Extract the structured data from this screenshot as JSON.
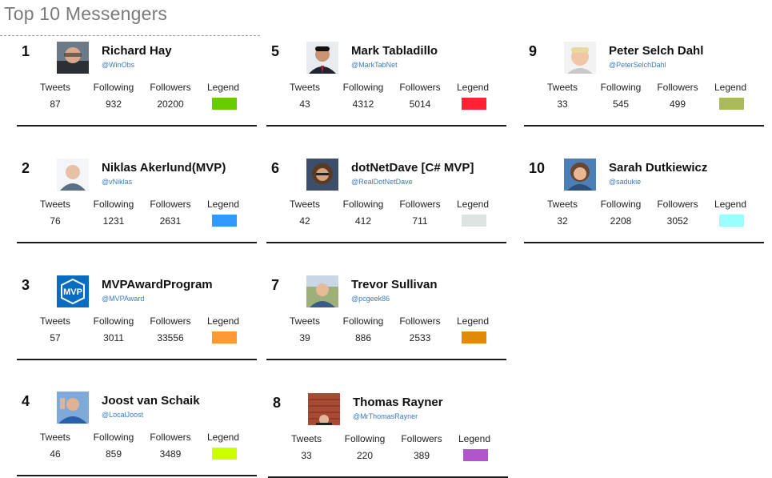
{
  "page": {
    "title": "Top 10 Messengers"
  },
  "labels": {
    "tweets": "Tweets",
    "following": "Following",
    "followers": "Followers",
    "legend": "Legend"
  },
  "messengers": [
    {
      "rank": "1",
      "name": "Richard Hay",
      "handle": "@WinObs",
      "tweets": "87",
      "following": "932",
      "followers": "20200",
      "color": "#66cc00",
      "avatar": "person-bald"
    },
    {
      "rank": "2",
      "name": "Niklas Akerlund(MVP)",
      "handle": "@vNiklas",
      "tweets": "76",
      "following": "1231",
      "followers": "2631",
      "color": "#3399ff",
      "avatar": "person-light"
    },
    {
      "rank": "3",
      "name": "MVPAwardProgram",
      "handle": "@MVPAward",
      "tweets": "57",
      "following": "3011",
      "followers": "33556",
      "color": "#ff9933",
      "avatar": "mvp-logo",
      "avatar_text": "MVP"
    },
    {
      "rank": "4",
      "name": "Joost van Schaik",
      "handle": "@LocalJoost",
      "tweets": "46",
      "following": "859",
      "followers": "3489",
      "color": "#ccff00",
      "avatar": "person-blue"
    },
    {
      "rank": "5",
      "name": "Mark Tabladillo",
      "handle": "@MarkTabNet",
      "tweets": "43",
      "following": "4312",
      "followers": "5014",
      "color": "#ff2233",
      "avatar": "person-suit"
    },
    {
      "rank": "6",
      "name": "dotNetDave [C# MVP]",
      "handle": "@RealDotNetDave",
      "tweets": "42",
      "following": "412",
      "followers": "711",
      "color": "#dde3e0",
      "avatar": "person-dark"
    },
    {
      "rank": "7",
      "name": "Trevor Sullivan",
      "handle": "@pcgeek86",
      "tweets": "39",
      "following": "886",
      "followers": "2533",
      "color": "#e08a0a",
      "avatar": "person-outdoor"
    },
    {
      "rank": "8",
      "name": "Thomas Rayner",
      "handle": "@MrThomasRayner",
      "tweets": "33",
      "following": "220",
      "followers": "389",
      "color": "#b055cc",
      "avatar": "person-brick"
    },
    {
      "rank": "9",
      "name": "Peter Selch Dahl",
      "handle": "@PeterSelchDahl",
      "tweets": "33",
      "following": "545",
      "followers": "499",
      "color": "#aabb55",
      "avatar": "person-blond"
    },
    {
      "rank": "10",
      "name": "Sarah Dutkiewicz",
      "handle": "@sadukie",
      "tweets": "32",
      "following": "2208",
      "followers": "3052",
      "color": "#99ffff",
      "avatar": "person-woman"
    }
  ]
}
